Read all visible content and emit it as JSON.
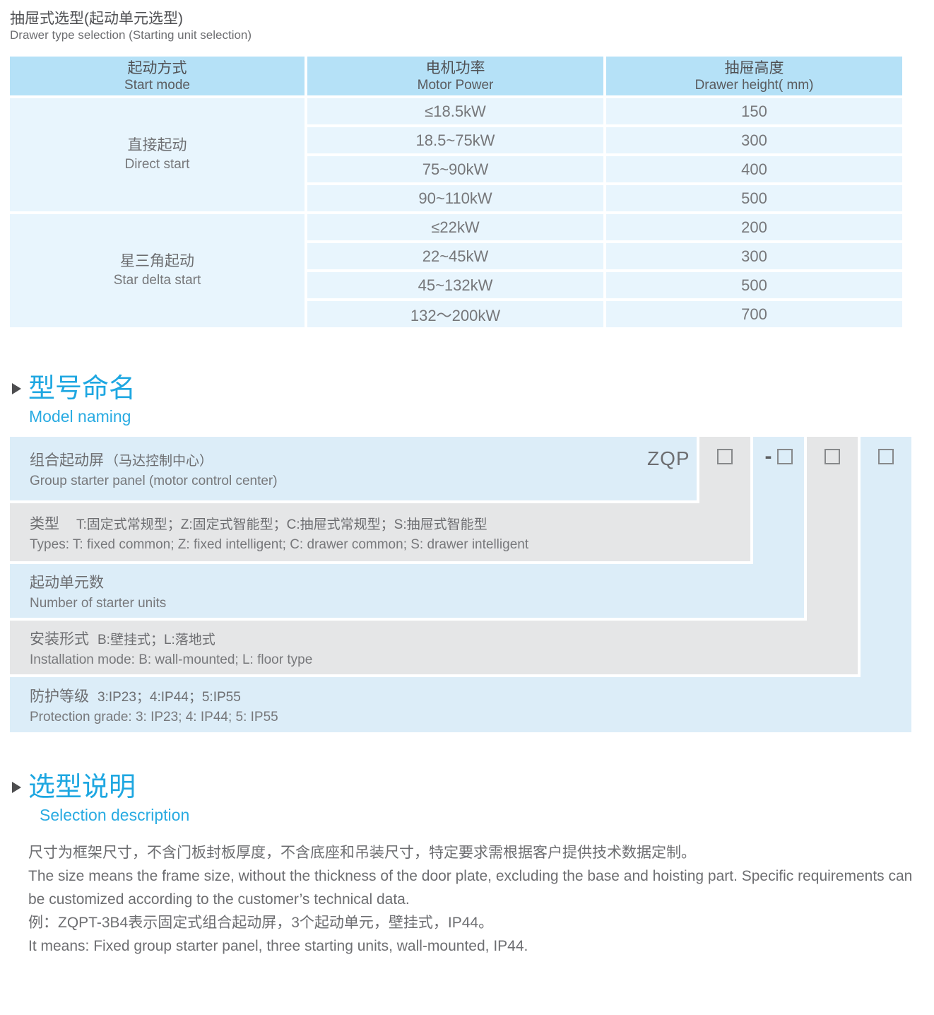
{
  "page_title": {
    "cn": "抽屉式选型(起动单元选型)",
    "en": "Drawer type selection (Starting unit selection)"
  },
  "selection_table": {
    "header": {
      "start_mode": {
        "cn": "起动方式",
        "en": "Start mode"
      },
      "motor_power": {
        "cn": "电机功率",
        "en": "Motor Power"
      },
      "drawer_height": {
        "cn": "抽屉高度",
        "en": "Drawer height( mm)"
      }
    },
    "groups": [
      {
        "mode": {
          "cn": "直接起动",
          "en": "Direct start"
        },
        "rows": [
          {
            "power": "≤18.5kW",
            "height": "150"
          },
          {
            "power": "18.5~75kW",
            "height": "300"
          },
          {
            "power": "75~90kW",
            "height": "400"
          },
          {
            "power": "90~110kW",
            "height": "500"
          }
        ]
      },
      {
        "mode": {
          "cn": "星三角起动",
          "en": "Star delta start"
        },
        "rows": [
          {
            "power": "≤22kW",
            "height": "200"
          },
          {
            "power": "22~45kW",
            "height": "300"
          },
          {
            "power": "45~132kW",
            "height": "500"
          },
          {
            "power": "132～200kW",
            "height": "700"
          }
        ]
      }
    ]
  },
  "model_naming": {
    "heading": {
      "cn": "型号命名",
      "en": "Model naming"
    },
    "code": "ZQP",
    "code_separator": "-",
    "bands": [
      {
        "label_cn": "组合起动屏",
        "note_cn": "（马达控制中心）",
        "en": "Group starter panel (motor control center)"
      },
      {
        "label_cn": "类型",
        "note_cn": "T:固定式常规型；Z:固定式智能型；C:抽屉式常规型；S:抽屉式智能型",
        "en": "Types: T: fixed common; Z: fixed intelligent; C: drawer common; S: drawer intelligent"
      },
      {
        "label_cn": "起动单元数",
        "note_cn": "",
        "en": "Number of starter units"
      },
      {
        "label_cn": "安装形式",
        "note_cn": "B:壁挂式；L:落地式",
        "en": "Installation mode: B: wall-mounted; L: floor type"
      },
      {
        "label_cn": "防护等级",
        "note_cn": "3:IP23；4:IP44；5:IP55",
        "en": "Protection grade: 3: IP23; 4: IP44; 5: IP55"
      }
    ]
  },
  "selection_description": {
    "heading": {
      "cn": "选型说明",
      "en": "Selection description"
    },
    "paragraphs": [
      "尺寸为框架尺寸，不含门板封板厚度，不含底座和吊装尺寸，特定要求需根据客户提供技术数据定制。",
      "The size means the frame size, without the thickness of the door plate, excluding the base and hoisting part. Specific requirements can be customized according to the customer’s technical data.",
      "例：ZQPT-3B4表示固定式组合起动屏，3个起动单元，壁挂式，IP44。",
      "It means: Fixed group starter panel, three starting units, wall-mounted, IP44."
    ]
  },
  "colors": {
    "accent_blue": "#1ea7e1",
    "table_header_bg": "#b5e1f7",
    "table_cell_bg": "#e8f5fd",
    "band_blue_bg": "#dcedf8",
    "band_gray_bg": "#e5e6e7",
    "text_dark": "#4f5053",
    "text_gray": "#6d6e71"
  }
}
